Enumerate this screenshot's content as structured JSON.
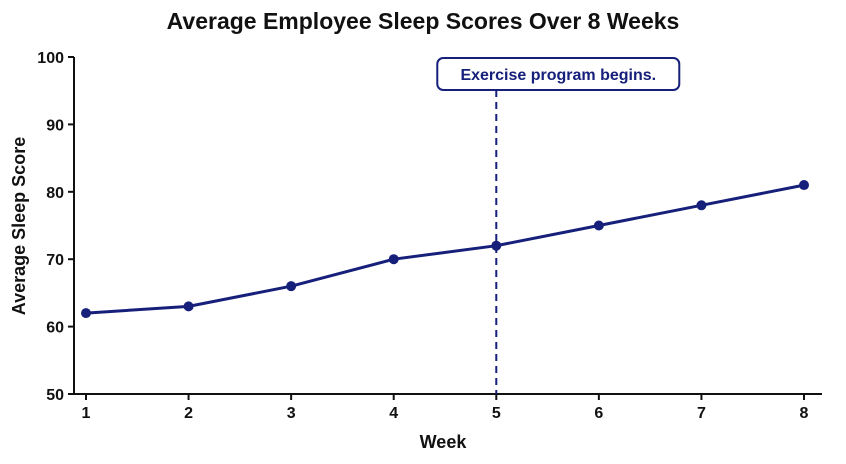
{
  "chart_data": {
    "type": "line",
    "title": "Average Employee Sleep Scores Over 8 Weeks",
    "xlabel": "Week",
    "ylabel": "Average Sleep Score",
    "x": [
      1,
      2,
      3,
      4,
      5,
      6,
      7,
      8
    ],
    "y": [
      62,
      63,
      66,
      70,
      72,
      75,
      78,
      81
    ],
    "xlim": [
      1,
      8
    ],
    "ylim": [
      50,
      100
    ],
    "xticks": [
      "1",
      "2",
      "3",
      "4",
      "5",
      "6",
      "7",
      "8"
    ],
    "yticks": [
      "50",
      "60",
      "70",
      "80",
      "90",
      "100"
    ],
    "grid": false,
    "legend": "none",
    "annotation": {
      "text": "Exercise program begins.",
      "x": 5
    },
    "colors": {
      "line": "#16207a",
      "text": "#111111",
      "axis": "#111111"
    }
  }
}
